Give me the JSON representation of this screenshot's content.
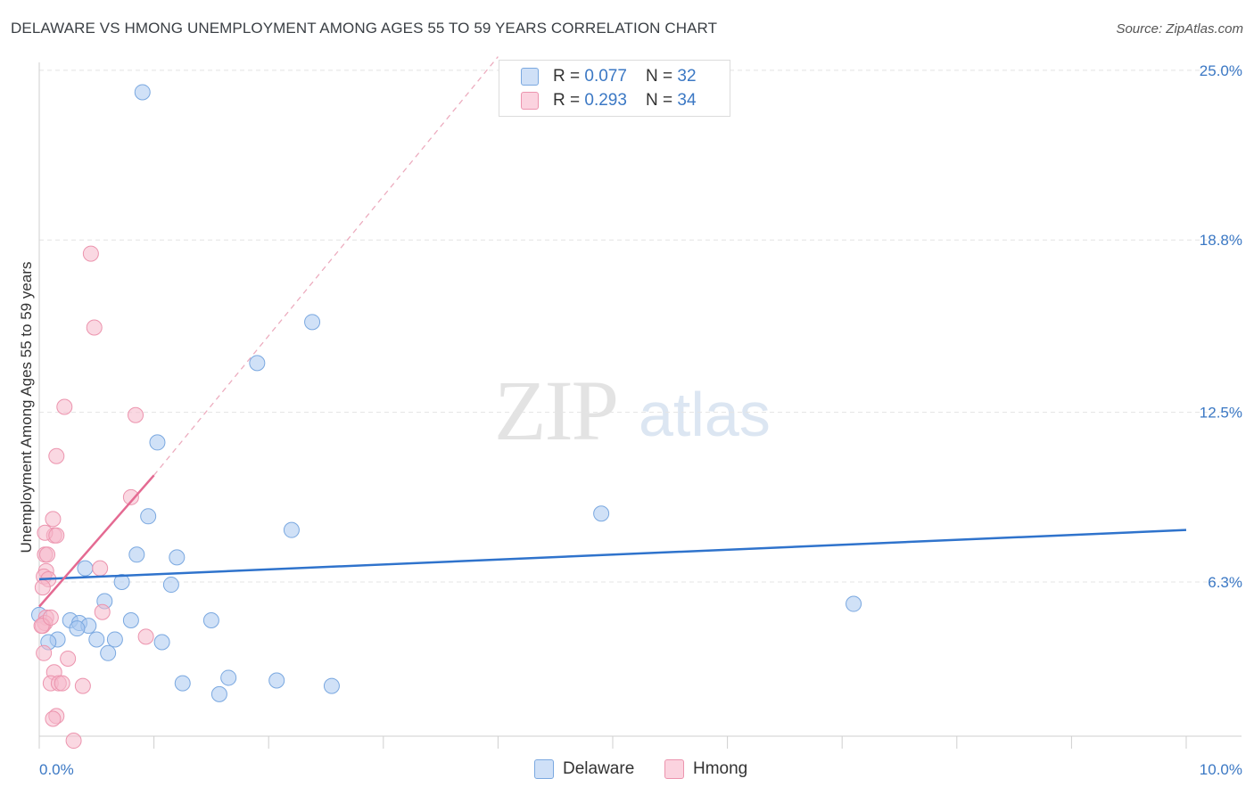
{
  "title": "DELAWARE VS HMONG UNEMPLOYMENT AMONG AGES 55 TO 59 YEARS CORRELATION CHART",
  "source": "Source: ZipAtlas.com",
  "watermark": {
    "zip": "ZIP",
    "atlas": "atlas"
  },
  "legend_top": [
    {
      "r_label": "R = ",
      "r": "0.077",
      "n_label": "N = ",
      "n": "32",
      "color": "#a9c8f0"
    },
    {
      "r_label": "R = ",
      "r": "0.293",
      "n_label": "N = ",
      "n": "34",
      "color": "#f6b8cb"
    }
  ],
  "legend_bottom": [
    {
      "label": "Delaware",
      "color": "#a9c8f0"
    },
    {
      "label": "Hmong",
      "color": "#f6b8cb"
    }
  ],
  "chart_data": {
    "type": "scatter",
    "title": "DELAWARE VS HMONG UNEMPLOYMENT AMONG AGES 55 TO 59 YEARS CORRELATION CHART",
    "xlabel": "",
    "ylabel": "Unemployment Among Ages 55 to 59 years",
    "xlim": [
      0,
      10
    ],
    "ylim": [
      0,
      26
    ],
    "x_tick_labels": [
      {
        "value": 0,
        "label": "0.0%"
      },
      {
        "value": 10,
        "label": "10.0%"
      }
    ],
    "y_tick_labels": [
      {
        "value": 6.3,
        "label": "6.3%"
      },
      {
        "value": 12.5,
        "label": "12.5%"
      },
      {
        "value": 18.8,
        "label": "18.8%"
      },
      {
        "value": 25.0,
        "label": "25.0%"
      }
    ],
    "grid": true,
    "legend_position": "top-center",
    "series": [
      {
        "name": "Delaware",
        "color": "#a9c8f0",
        "stroke": "#7aa8e0",
        "points": [
          [
            0.9,
            24.2
          ],
          [
            2.38,
            15.8
          ],
          [
            1.9,
            14.3
          ],
          [
            1.03,
            11.4
          ],
          [
            4.9,
            8.8
          ],
          [
            0.95,
            8.7
          ],
          [
            2.2,
            8.2
          ],
          [
            0.85,
            7.3
          ],
          [
            1.2,
            7.2
          ],
          [
            0.4,
            6.8
          ],
          [
            0.72,
            6.3
          ],
          [
            1.15,
            6.2
          ],
          [
            0.57,
            5.6
          ],
          [
            7.1,
            5.5
          ],
          [
            0.0,
            5.1
          ],
          [
            0.27,
            4.9
          ],
          [
            0.8,
            4.9
          ],
          [
            1.5,
            4.9
          ],
          [
            0.35,
            4.8
          ],
          [
            0.43,
            4.7
          ],
          [
            0.33,
            4.6
          ],
          [
            0.16,
            4.2
          ],
          [
            0.5,
            4.2
          ],
          [
            0.66,
            4.2
          ],
          [
            1.07,
            4.1
          ],
          [
            0.08,
            4.1
          ],
          [
            0.6,
            3.7
          ],
          [
            1.65,
            2.8
          ],
          [
            1.25,
            2.6
          ],
          [
            2.07,
            2.7
          ],
          [
            2.55,
            2.5
          ],
          [
            1.57,
            2.2
          ]
        ],
        "trend": {
          "x": [
            0,
            10
          ],
          "y": [
            6.4,
            8.2
          ],
          "style": "solid"
        }
      },
      {
        "name": "Hmong",
        "color": "#f6b8cb",
        "stroke": "#ec94ae",
        "points": [
          [
            0.45,
            18.3
          ],
          [
            0.48,
            15.6
          ],
          [
            0.22,
            12.7
          ],
          [
            0.84,
            12.4
          ],
          [
            0.15,
            10.9
          ],
          [
            0.8,
            9.4
          ],
          [
            0.12,
            8.6
          ],
          [
            0.13,
            8.0
          ],
          [
            0.05,
            8.1
          ],
          [
            0.15,
            8.0
          ],
          [
            0.05,
            7.3
          ],
          [
            0.07,
            7.3
          ],
          [
            0.53,
            6.8
          ],
          [
            0.06,
            6.7
          ],
          [
            0.04,
            6.5
          ],
          [
            0.08,
            6.4
          ],
          [
            0.03,
            6.1
          ],
          [
            0.55,
            5.2
          ],
          [
            0.06,
            5.0
          ],
          [
            0.05,
            4.8
          ],
          [
            0.03,
            4.7
          ],
          [
            0.93,
            4.3
          ],
          [
            0.25,
            3.5
          ],
          [
            0.04,
            3.7
          ],
          [
            0.13,
            3.0
          ],
          [
            0.1,
            2.6
          ],
          [
            0.17,
            2.6
          ],
          [
            0.2,
            2.6
          ],
          [
            0.38,
            2.5
          ],
          [
            0.15,
            1.4
          ],
          [
            0.12,
            1.3
          ],
          [
            0.3,
            0.5
          ],
          [
            0.02,
            4.7
          ],
          [
            0.1,
            5.0
          ]
        ],
        "trend": {
          "x": [
            0,
            1.0
          ],
          "y": [
            5.4,
            10.2
          ],
          "style": "solid",
          "extension": {
            "x": [
              1.0,
              4.0
            ],
            "y": [
              10.2,
              25.5
            ],
            "style": "dashed"
          }
        }
      }
    ]
  }
}
